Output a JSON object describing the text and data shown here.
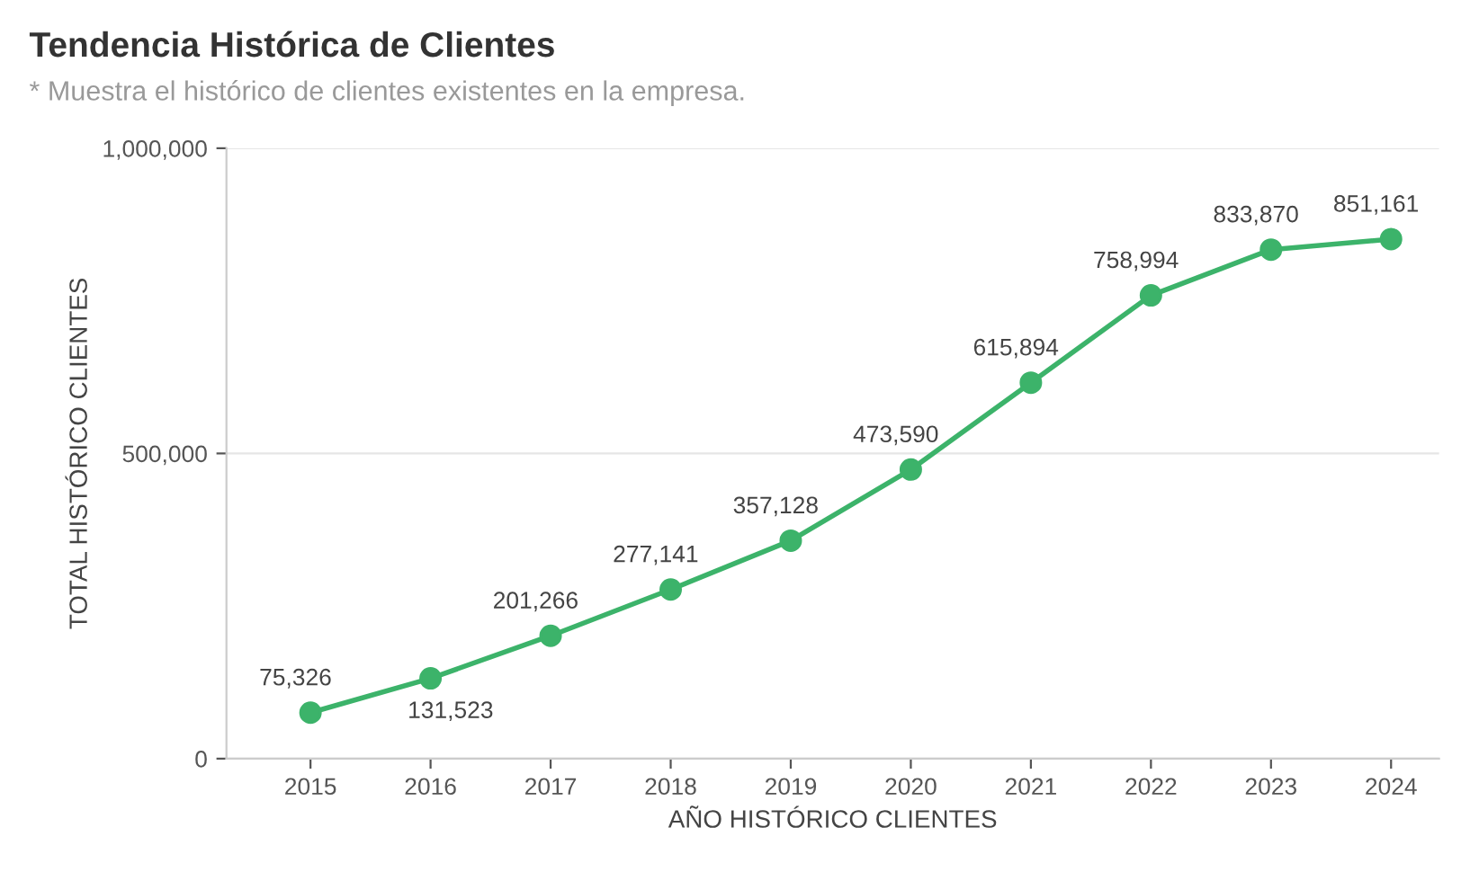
{
  "chart_data": {
    "type": "line",
    "title": "Tendencia Histórica de Clientes",
    "subtitle": "* Muestra el histórico de clientes existentes en la empresa.",
    "xlabel": "AÑO HISTÓRICO CLIENTES",
    "ylabel": "TOTAL HISTÓRICO CLIENTES",
    "categories": [
      "2015",
      "2016",
      "2017",
      "2018",
      "2019",
      "2020",
      "2021",
      "2022",
      "2023",
      "2024"
    ],
    "series": [
      {
        "color": "#3cb36a",
        "values": [
          75326,
          131523,
          201266,
          277141,
          357128,
          473590,
          615894,
          758994,
          833870,
          851161
        ],
        "value_labels": [
          "75,326",
          "131,523",
          "201,266",
          "277,141",
          "357,128",
          "473,590",
          "615,894",
          "758,994",
          "833,870",
          "851,161"
        ]
      }
    ],
    "ylim": [
      0,
      1000000
    ],
    "yticks": [
      {
        "value": 0,
        "label": "0"
      },
      {
        "value": 500000,
        "label": "500,000"
      },
      {
        "value": 1000000,
        "label": "1,000,000"
      }
    ],
    "grid": "y",
    "marker": "circle",
    "line_style": "solid"
  }
}
